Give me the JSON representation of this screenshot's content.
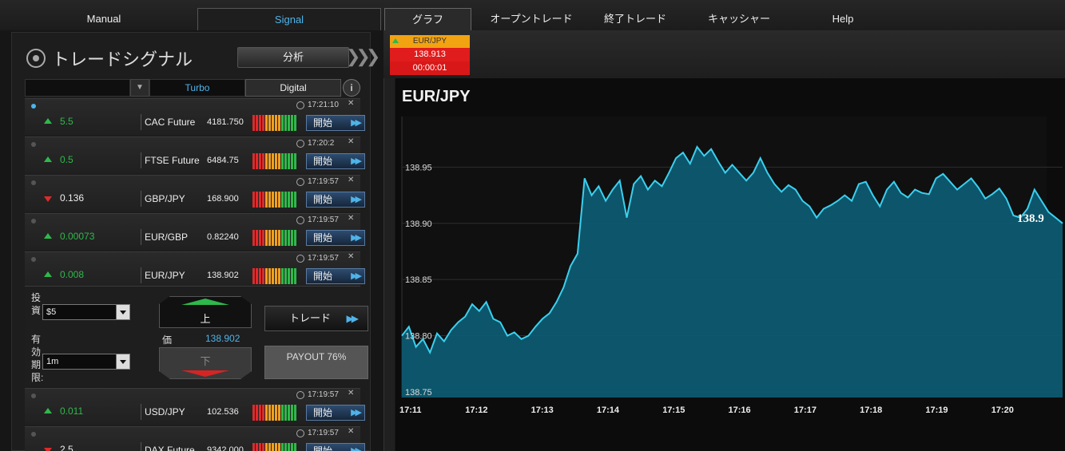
{
  "nav": {
    "manual": "Manual",
    "signal": "Signal",
    "graph": "グラフ",
    "open_trade": "オープントレード",
    "closed_trade": "終了トレード",
    "cashier": "キャッシャー",
    "help": "Help"
  },
  "panel": {
    "title": "トレードシグナル",
    "analyze": "分析",
    "filter_turbo": "Turbo",
    "filter_digital": "Digital",
    "info": "i"
  },
  "signals": [
    {
      "active": true,
      "time": "17:21:10",
      "direction": "up",
      "strength": "5.5",
      "symbol": "CAC Future",
      "price": "4181.750",
      "start": "開始"
    },
    {
      "active": false,
      "time": "17:20:2",
      "direction": "up",
      "strength": "0.5",
      "symbol": "FTSE Future",
      "price": "6484.75",
      "start": "開始"
    },
    {
      "active": false,
      "time": "17:19:57",
      "direction": "down",
      "strength": "0.136",
      "symbol": "GBP/JPY",
      "price": "168.900",
      "start": "開始"
    },
    {
      "active": false,
      "time": "17:19:57",
      "direction": "up",
      "strength": "0.00073",
      "symbol": "EUR/GBP",
      "price": "0.82240",
      "start": "開始"
    },
    {
      "active": false,
      "time": "17:19:57",
      "direction": "up",
      "strength": "0.008",
      "symbol": "EUR/JPY",
      "price": "138.902",
      "start": "開始"
    },
    {
      "active": false,
      "time": "17:19:57",
      "direction": "up",
      "strength": "0.011",
      "symbol": "USD/JPY",
      "price": "102.536",
      "start": "開始"
    },
    {
      "active": false,
      "time": "17:19:57",
      "direction": "down",
      "strength": "2.5",
      "symbol": "DAX Future",
      "price": "9342.000",
      "start": "開始"
    }
  ],
  "trade": {
    "invest_label": "投資",
    "invest_value": "$5",
    "expiry_label": "有効期限:",
    "expiry_value": "1m",
    "up": "上",
    "down": "下",
    "price_label": "価",
    "price_value": "138.902",
    "trade_btn": "トレード",
    "payout": "PAYOUT 76%"
  },
  "quote": {
    "symbol": "EUR/JPY",
    "price": "138.913",
    "timer": "00:00:01"
  },
  "colors": {
    "accent": "#4fb3e8",
    "up": "#2fb84b",
    "down": "#e02a2a",
    "area_fill": "#0e5a70",
    "area_line": "#3ad0f0"
  },
  "chart_data": {
    "type": "area",
    "title": "EUR/JPY",
    "ylim": [
      138.745,
      138.995
    ],
    "yticks": [
      138.75,
      138.8,
      138.85,
      138.9,
      138.95
    ],
    "xticks": [
      "17:11",
      "17:12",
      "17:13",
      "17:14",
      "17:15",
      "17:16",
      "17:17",
      "17:18",
      "17:19",
      "17:20"
    ],
    "last_label": "138.9",
    "grid": true,
    "series": [
      {
        "values": [
          138.8,
          138.808,
          138.79,
          138.797,
          138.785,
          138.802,
          138.795,
          138.805,
          138.812,
          138.817,
          138.828,
          138.822,
          138.83,
          138.815,
          138.812,
          138.8,
          138.803,
          138.797,
          138.8,
          138.808,
          138.815,
          138.82,
          138.83,
          138.843,
          138.862,
          138.873,
          138.94,
          138.925,
          138.933,
          138.92,
          138.93,
          138.938,
          138.905,
          138.935,
          138.942,
          138.93,
          138.938,
          138.933,
          138.945,
          138.958,
          138.963,
          138.953,
          138.968,
          138.96,
          138.966,
          138.955,
          138.945,
          138.952,
          138.945,
          138.938,
          138.945,
          138.958,
          138.945,
          138.935,
          138.928,
          138.934,
          138.93,
          138.92,
          138.915,
          138.905,
          138.913,
          138.916,
          138.92,
          138.925,
          138.92,
          138.935,
          138.937,
          138.925,
          138.915,
          138.93,
          138.937,
          138.927,
          138.923,
          138.93,
          138.927,
          138.926,
          138.94,
          138.944,
          138.937,
          138.93,
          138.935,
          138.94,
          138.932,
          138.922,
          138.926,
          138.931,
          138.922,
          138.907,
          138.905,
          138.913,
          138.93,
          138.92,
          138.91,
          138.905,
          138.9
        ]
      }
    ]
  }
}
